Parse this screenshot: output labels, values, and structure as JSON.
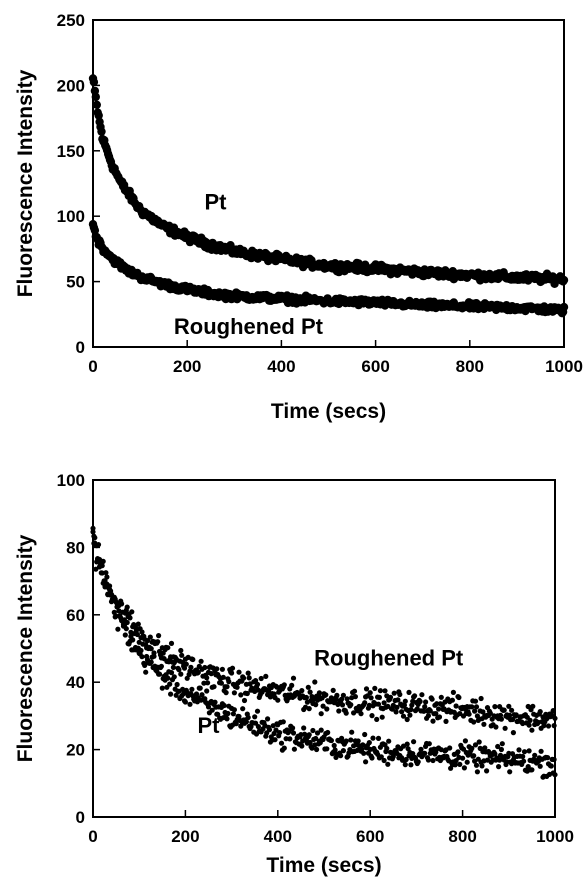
{
  "chart_data": [
    {
      "type": "scatter",
      "xlabel": "Time (secs)",
      "ylabel": "Fluorescence Intensity",
      "xlim": [
        0,
        1000
      ],
      "ylim": [
        0,
        250
      ],
      "x_ticks": [
        0,
        200,
        400,
        600,
        800,
        1000
      ],
      "y_ticks": [
        0,
        50,
        100,
        150,
        200,
        250
      ],
      "grid": false,
      "annotations": [
        {
          "text": "Pt",
          "x": 260,
          "y": 105
        },
        {
          "text": "Roughened Pt",
          "x": 330,
          "y": 10
        }
      ],
      "series": [
        {
          "name": "Pt",
          "x": [
            0,
            10,
            20,
            40,
            60,
            80,
            100,
            150,
            200,
            250,
            300,
            400,
            500,
            600,
            700,
            800,
            900,
            1000
          ],
          "y": [
            205,
            180,
            160,
            140,
            125,
            115,
            105,
            92,
            84,
            78,
            73,
            67,
            62,
            60,
            57,
            55,
            53,
            52
          ]
        },
        {
          "name": "Roughened Pt",
          "x": [
            0,
            10,
            20,
            40,
            60,
            80,
            100,
            150,
            200,
            250,
            300,
            400,
            500,
            600,
            700,
            800,
            900,
            1000
          ],
          "y": [
            93,
            82,
            76,
            68,
            62,
            57,
            54,
            48,
            44,
            41,
            39,
            37,
            35,
            34,
            32,
            31,
            30,
            28
          ]
        }
      ]
    },
    {
      "type": "scatter",
      "xlabel": "Time (secs)",
      "ylabel": "Fluorescence Intensity",
      "xlim": [
        0,
        1000
      ],
      "ylim": [
        0,
        100
      ],
      "x_ticks": [
        0,
        200,
        400,
        600,
        800,
        1000
      ],
      "y_ticks": [
        0,
        20,
        40,
        60,
        80,
        100
      ],
      "grid": false,
      "annotations": [
        {
          "text": "Roughened Pt",
          "x": 640,
          "y": 45
        },
        {
          "text": "Pt",
          "x": 250,
          "y": 25
        }
      ],
      "series": [
        {
          "name": "Roughened Pt",
          "x": [
            0,
            10,
            20,
            40,
            60,
            80,
            100,
            150,
            200,
            250,
            300,
            400,
            500,
            600,
            700,
            800,
            900,
            1000
          ],
          "y": [
            85,
            78,
            74,
            67,
            62,
            58,
            55,
            49,
            45,
            42,
            40,
            37,
            35,
            34,
            33,
            32,
            30,
            29
          ]
        },
        {
          "name": "Pt",
          "x": [
            0,
            10,
            20,
            40,
            60,
            80,
            100,
            150,
            200,
            250,
            300,
            400,
            500,
            600,
            700,
            800,
            900,
            1000
          ],
          "y": [
            82,
            76,
            72,
            64,
            58,
            53,
            49,
            42,
            37,
            33,
            30,
            25,
            22,
            20,
            19,
            18,
            17,
            16
          ]
        }
      ]
    }
  ]
}
